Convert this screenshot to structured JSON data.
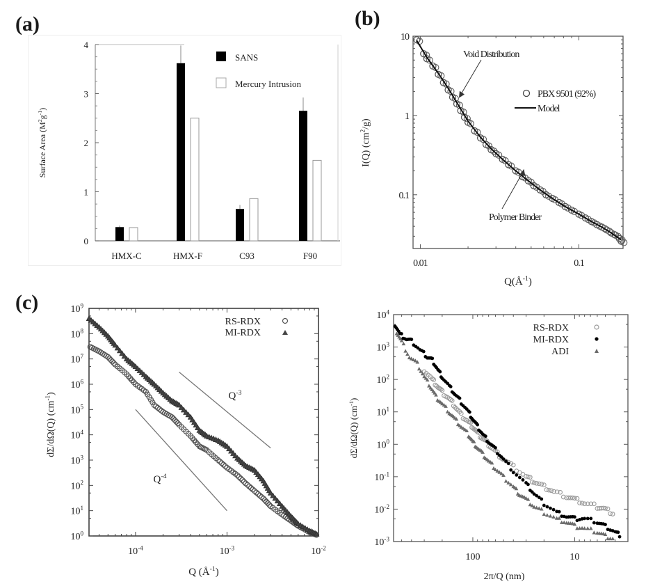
{
  "panels": {
    "a": {
      "label": "(a)"
    },
    "b": {
      "label": "(b)"
    },
    "c": {
      "label": "(c)"
    }
  },
  "chart_data": [
    {
      "id": "a",
      "type": "bar",
      "title": "",
      "xlabel": "",
      "ylabel": "Surface Area (M²g⁻¹)",
      "ylabel_parts": {
        "main": "Surface Area (M",
        "sup1": "2",
        "mid": "g",
        "sup2": "-1",
        "end": ")"
      },
      "categories": [
        "HMX-C",
        "HMX-F",
        "C93",
        "F90"
      ],
      "series": [
        {
          "name": "SANS",
          "values": [
            0.28,
            3.62,
            0.65,
            2.65
          ],
          "errors": [
            0.03,
            0.36,
            0.08,
            0.27
          ],
          "color": "#000000"
        },
        {
          "name": "Mercury Intrusion",
          "values": [
            0.27,
            2.5,
            0.86,
            1.64
          ],
          "color": "#ffffff"
        }
      ],
      "ylim": [
        0,
        4
      ],
      "yticks": [
        "0",
        "1",
        "2",
        "3",
        "4"
      ],
      "legend": "top-right"
    },
    {
      "id": "b",
      "type": "scatter",
      "xscale": "log",
      "yscale": "log",
      "xlabel": "Q(Å⁻¹)",
      "xlabel_parts": {
        "main": "Q(Å",
        "sup": "-1",
        "end": ")"
      },
      "ylabel": "I(Q) (cm²/g)",
      "ylabel_parts": {
        "main": "I(Q) (cm",
        "sup": "2",
        "end": "/g)"
      },
      "xlim": [
        0.009,
        0.19
      ],
      "ylim": [
        0.021,
        10
      ],
      "xticks": [
        {
          "v": 0.01,
          "label": "0.01"
        },
        {
          "v": 0.1,
          "label": "0.1"
        }
      ],
      "yticks": [
        {
          "v": 0.1,
          "label": "0.1"
        },
        {
          "v": 1,
          "label": "1"
        },
        {
          "v": 10,
          "label": "10"
        }
      ],
      "series": [
        {
          "name": "PBX 9501 (92%)",
          "marker": "circle",
          "x": [
            0.0095,
            0.0105,
            0.011,
            0.012,
            0.013,
            0.014,
            0.015,
            0.016,
            0.017,
            0.018,
            0.019,
            0.02,
            0.022,
            0.024,
            0.026,
            0.028,
            0.03,
            0.033,
            0.036,
            0.04,
            0.044,
            0.048,
            0.052,
            0.057,
            0.062,
            0.068,
            0.075,
            0.082,
            0.09,
            0.1,
            0.11,
            0.12,
            0.13,
            0.14,
            0.15,
            0.16,
            0.17,
            0.18,
            0.185
          ],
          "y": [
            9.0,
            6.0,
            5.2,
            4.2,
            3.3,
            2.6,
            2.1,
            1.7,
            1.4,
            1.15,
            0.95,
            0.82,
            0.64,
            0.52,
            0.43,
            0.37,
            0.33,
            0.28,
            0.24,
            0.2,
            0.17,
            0.15,
            0.13,
            0.115,
            0.1,
            0.09,
            0.08,
            0.071,
            0.064,
            0.057,
            0.051,
            0.046,
            0.042,
            0.039,
            0.036,
            0.033,
            0.031,
            0.028,
            0.026
          ]
        },
        {
          "name": "Model",
          "marker": "line",
          "x": [
            0.0095,
            0.011,
            0.013,
            0.015,
            0.017,
            0.02,
            0.024,
            0.028,
            0.033,
            0.04,
            0.048,
            0.057,
            0.068,
            0.082,
            0.1,
            0.12,
            0.14,
            0.16,
            0.185
          ],
          "y": [
            8.8,
            5.4,
            3.4,
            2.2,
            1.45,
            0.85,
            0.53,
            0.38,
            0.28,
            0.2,
            0.15,
            0.115,
            0.09,
            0.071,
            0.057,
            0.046,
            0.039,
            0.033,
            0.027
          ]
        }
      ],
      "annotations": [
        {
          "text": "Void Distribution",
          "x": 0.017,
          "y": 1.6
        },
        {
          "text": "Polymer Binder",
          "x": 0.045,
          "y": 0.22
        }
      ],
      "legend": "top-right"
    },
    {
      "id": "c",
      "type": "scatter",
      "xscale": "log",
      "yscale": "log",
      "xlabel": "Q (Å⁻¹)",
      "xlabel_parts": {
        "main": "Q (Å",
        "sup": "-1",
        "end": ")"
      },
      "ylabel": "dΣ/dΩ(Q) (cm⁻¹)",
      "ylabel_parts": {
        "main": "dΣ/dΩ(Q) (cm",
        "sup": "-1",
        "end": ")"
      },
      "xlim": [
        3.1e-05,
        0.01
      ],
      "ylim": [
        1,
        1000000000
      ],
      "xticks": [
        {
          "v": 0.0001,
          "base": "10",
          "exp": "-4"
        },
        {
          "v": 0.001,
          "base": "10",
          "exp": "-3"
        },
        {
          "v": 0.01,
          "base": "10",
          "exp": "-2"
        }
      ],
      "yticks": [
        {
          "v": 1,
          "base": "10",
          "exp": "0"
        },
        {
          "v": 10,
          "base": "10",
          "exp": "1"
        },
        {
          "v": 100,
          "base": "10",
          "exp": "2"
        },
        {
          "v": 1000,
          "base": "10",
          "exp": "3"
        },
        {
          "v": 10000,
          "base": "10",
          "exp": "4"
        },
        {
          "v": 100000,
          "base": "10",
          "exp": "5"
        },
        {
          "v": 1000000,
          "base": "10",
          "exp": "6"
        },
        {
          "v": 10000000,
          "base": "10",
          "exp": "7"
        },
        {
          "v": 100000000,
          "base": "10",
          "exp": "8"
        },
        {
          "v": 1000000000,
          "base": "10",
          "exp": "9"
        }
      ],
      "series": [
        {
          "name": "RS-RDX",
          "marker": "circle",
          "x": [
            3.2e-05,
            4e-05,
            5e-05,
            6e-05,
            8e-05,
            0.0001,
            0.00013,
            0.00016,
            0.0002,
            0.00025,
            0.0003,
            0.0004,
            0.0005,
            0.0006,
            0.0008,
            0.001,
            0.0013,
            0.0016,
            0.002,
            0.0025,
            0.003,
            0.004,
            0.005,
            0.006,
            0.008,
            0.0095
          ],
          "y": [
            30000000,
            20000000,
            12000000,
            6000000,
            2500000,
            1000000,
            500000,
            150000,
            80000,
            50000,
            25000,
            9000,
            3500,
            2500,
            1000,
            500,
            250,
            120,
            60,
            30,
            15,
            7,
            4,
            2.5,
            1.4,
            1.1
          ]
        },
        {
          "name": "MI-RDX",
          "marker": "triangle",
          "x": [
            3.1e-05,
            4e-05,
            5e-05,
            6e-05,
            8e-05,
            0.0001,
            0.00013,
            0.00016,
            0.0002,
            0.00025,
            0.0003,
            0.0004,
            0.0005,
            0.0006,
            0.0008,
            0.001,
            0.0013,
            0.0016,
            0.002,
            0.0025,
            0.003,
            0.004,
            0.005,
            0.006,
            0.008,
            0.0095
          ],
          "y": [
            400000000,
            180000000,
            80000000,
            35000000,
            10000000,
            5000000,
            2000000,
            1000000,
            450000,
            220000,
            150000,
            50000,
            15000,
            9000,
            6000,
            3500,
            1200,
            600,
            400,
            150,
            50,
            15,
            6,
            3,
            1.6,
            1.2
          ]
        }
      ],
      "guides": [
        {
          "label": "Q",
          "exp": "-3",
          "from": [
            0.0003,
            3000000
          ],
          "to": [
            0.003,
            3000
          ]
        },
        {
          "label": "Q",
          "exp": "-4",
          "from": [
            0.0001,
            100000
          ],
          "to": [
            0.001,
            10
          ]
        }
      ],
      "legend": "top-right"
    },
    {
      "id": "d",
      "type": "scatter",
      "xscale": "log",
      "yscale": "log",
      "xreversed": true,
      "xlabel": "2π/Q (nm)",
      "ylabel": "dΣ/dΩ(Q) (cm⁻¹)",
      "ylabel_parts": {
        "main": "dΣ/dΩ(Q) (cm",
        "sup": "-1",
        "end": ")"
      },
      "xlim": [
        600,
        3
      ],
      "ylim": [
        0.001,
        10000
      ],
      "xticks": [
        {
          "v": 100,
          "label": "100"
        },
        {
          "v": 10,
          "label": "10"
        }
      ],
      "yticks": [
        {
          "v": 0.001,
          "base": "10",
          "exp": "-3"
        },
        {
          "v": 0.01,
          "base": "10",
          "exp": "-2"
        },
        {
          "v": 0.1,
          "base": "10",
          "exp": "-1"
        },
        {
          "v": 1,
          "base": "10",
          "exp": "0"
        },
        {
          "v": 10,
          "base": "10",
          "exp": "1"
        },
        {
          "v": 100,
          "base": "10",
          "exp": "2"
        },
        {
          "v": 1000,
          "base": "10",
          "exp": "3"
        },
        {
          "v": 10000,
          "base": "10",
          "exp": "4"
        }
      ],
      "series": [
        {
          "name": "RS-RDX",
          "marker": "open-circle",
          "color": "#9a9a9a",
          "x": [
            300,
            250,
            220,
            200,
            170,
            150,
            130,
            110,
            100,
            90,
            80,
            70,
            60,
            50,
            40,
            30,
            25,
            20,
            16,
            12,
            10,
            8,
            6,
            5,
            4
          ],
          "y": [
            200,
            100,
            60,
            40,
            25,
            15,
            8,
            5,
            3.5,
            2.2,
            1.5,
            1,
            0.6,
            0.35,
            0.2,
            0.1,
            0.07,
            0.05,
            0.035,
            0.025,
            0.02,
            0.015,
            0.012,
            0.01,
            0.007
          ]
        },
        {
          "name": "MI-RDX",
          "marker": "filled-circle",
          "color": "#000000",
          "x": [
            580,
            520,
            450,
            400,
            330,
            280,
            250,
            220,
            200,
            170,
            150,
            130,
            110,
            100,
            90,
            80,
            70,
            60,
            50,
            40,
            30,
            25,
            20,
            15,
            12,
            10,
            8,
            6,
            5,
            4,
            3.5
          ],
          "y": [
            5000,
            2500,
            1800,
            1500,
            800,
            500,
            400,
            200,
            120,
            60,
            35,
            20,
            10,
            6,
            3.5,
            2,
            1.2,
            0.7,
            0.35,
            0.15,
            0.06,
            0.03,
            0.015,
            0.008,
            0.006,
            0.005,
            0.005,
            0.004,
            0.003,
            0.002,
            0.0015
          ]
        },
        {
          "name": "ADI",
          "marker": "triangle",
          "color": "#6a6a6a",
          "x": [
            560,
            500,
            420,
            350,
            300,
            260,
            230,
            200,
            170,
            150,
            130,
            110,
            100,
            90,
            80,
            70,
            60,
            50,
            40,
            35,
            30,
            25,
            20,
            15,
            12,
            10,
            8,
            6,
            5,
            4
          ],
          "y": [
            3000,
            1500,
            500,
            300,
            120,
            60,
            30,
            18,
            10,
            6,
            3.5,
            2,
            1.2,
            0.8,
            0.5,
            0.3,
            0.18,
            0.1,
            0.05,
            0.03,
            0.02,
            0.012,
            0.008,
            0.005,
            0.004,
            0.003,
            0.0025,
            0.002,
            0.0015,
            0.0012
          ]
        }
      ],
      "legend": "top-right"
    }
  ]
}
